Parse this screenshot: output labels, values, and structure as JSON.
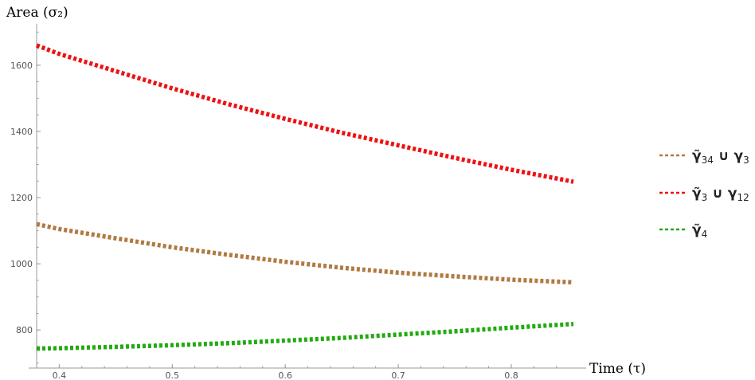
{
  "chart_data": {
    "type": "line",
    "xlabel": "Time (τ)",
    "ylabel": "Area (σ₂)",
    "xlim": [
      0.38,
      0.855
    ],
    "ylim": [
      685,
      1720
    ],
    "xticks": [
      0.4,
      0.5,
      0.6,
      0.7,
      0.8
    ],
    "yticks": [
      800,
      1000,
      1200,
      1400,
      1600
    ],
    "grid": false,
    "legend_position": "right",
    "series": [
      {
        "name": "γ̃34 ∪ γ3",
        "legend_main": "γ̃",
        "legend_sub": "34",
        "legend_op": " ∪ γ",
        "legend_sub2": "3",
        "color": "#b07a42",
        "x": [
          0.38,
          0.4,
          0.45,
          0.5,
          0.55,
          0.6,
          0.65,
          0.7,
          0.75,
          0.8,
          0.855
        ],
        "y": [
          1120,
          1105,
          1077,
          1050,
          1027,
          1006,
          988,
          973,
          962,
          952,
          944
        ]
      },
      {
        "name": "γ̃3 ∪ γ12",
        "legend_main": "γ̃",
        "legend_sub": "3",
        "legend_op": " ∪ γ",
        "legend_sub2": "12",
        "color": "#ee1111",
        "x": [
          0.38,
          0.4,
          0.45,
          0.5,
          0.55,
          0.6,
          0.65,
          0.7,
          0.75,
          0.8,
          0.855
        ],
        "y": [
          1660,
          1634,
          1582,
          1530,
          1482,
          1438,
          1396,
          1358,
          1320,
          1284,
          1248
        ]
      },
      {
        "name": "γ̃4",
        "legend_main": "γ̃",
        "legend_sub": "4",
        "legend_op": "",
        "legend_sub2": "",
        "color": "#22aa11",
        "x": [
          0.38,
          0.4,
          0.45,
          0.5,
          0.55,
          0.6,
          0.65,
          0.7,
          0.75,
          0.8,
          0.855
        ],
        "y": [
          744,
          745,
          749,
          754,
          760,
          768,
          776,
          786,
          796,
          807,
          818
        ]
      }
    ]
  }
}
